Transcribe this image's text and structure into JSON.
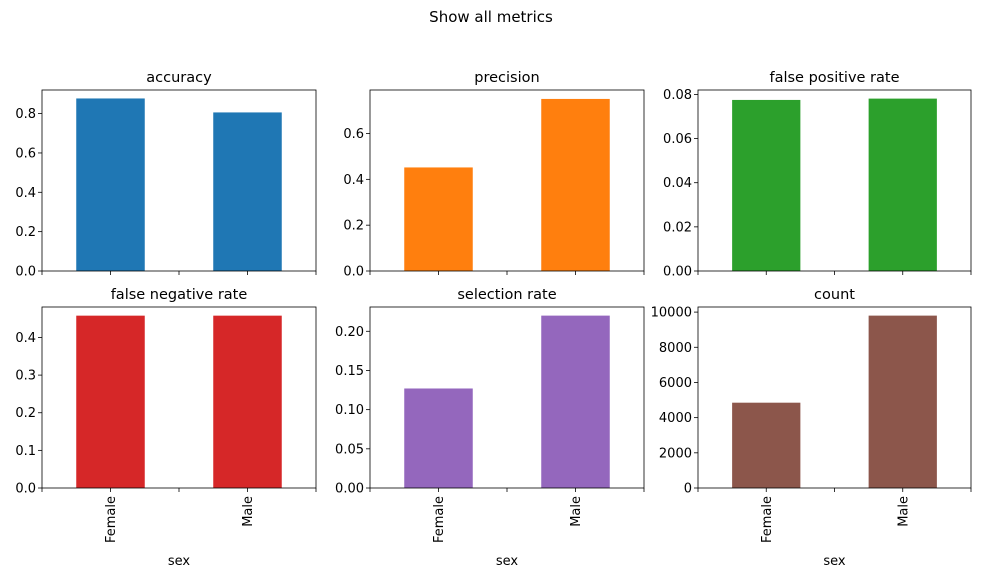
{
  "figure": {
    "suptitle": "Show all metrics"
  },
  "chart_data": [
    {
      "type": "bar",
      "title": "accuracy",
      "categories": [
        "Female",
        "Male"
      ],
      "values": [
        0.877,
        0.806
      ],
      "ylim": [
        0,
        0.92
      ],
      "yticks": [
        0.0,
        0.2,
        0.4,
        0.6,
        0.8
      ],
      "tick_decimals": 1,
      "color": "#1f77b4",
      "xlabel": "",
      "show_xticklabels": false,
      "grid": false
    },
    {
      "type": "bar",
      "title": "precision",
      "categories": [
        "Female",
        "Male"
      ],
      "values": [
        0.452,
        0.751
      ],
      "ylim": [
        0,
        0.79
      ],
      "yticks": [
        0.0,
        0.2,
        0.4,
        0.6
      ],
      "tick_decimals": 1,
      "color": "#ff7f0e",
      "xlabel": "",
      "show_xticklabels": false,
      "grid": false
    },
    {
      "type": "bar",
      "title": "false positive rate",
      "categories": [
        "Female",
        "Male"
      ],
      "values": [
        0.0775,
        0.0781
      ],
      "ylim": [
        0,
        0.082
      ],
      "yticks": [
        0.0,
        0.02,
        0.04,
        0.06,
        0.08
      ],
      "tick_decimals": 2,
      "color": "#2ca02c",
      "xlabel": "",
      "show_xticklabels": false,
      "grid": false
    },
    {
      "type": "bar",
      "title": "false negative rate",
      "categories": [
        "Female",
        "Male"
      ],
      "values": [
        0.458,
        0.458
      ],
      "ylim": [
        0,
        0.481
      ],
      "yticks": [
        0.0,
        0.1,
        0.2,
        0.3,
        0.4
      ],
      "tick_decimals": 1,
      "color": "#d62728",
      "xlabel": "sex",
      "show_xticklabels": true,
      "grid": false
    },
    {
      "type": "bar",
      "title": "selection rate",
      "categories": [
        "Female",
        "Male"
      ],
      "values": [
        0.127,
        0.22
      ],
      "ylim": [
        0,
        0.231
      ],
      "yticks": [
        0.0,
        0.05,
        0.1,
        0.15,
        0.2
      ],
      "tick_decimals": 2,
      "color": "#9467bd",
      "xlabel": "sex",
      "show_xticklabels": true,
      "grid": false
    },
    {
      "type": "bar",
      "title": "count",
      "categories": [
        "Female",
        "Male"
      ],
      "values": [
        4850,
        9800
      ],
      "ylim": [
        0,
        10290
      ],
      "yticks": [
        0,
        2000,
        4000,
        6000,
        8000,
        10000
      ],
      "tick_decimals": 0,
      "color": "#8c564b",
      "xlabel": "sex",
      "show_xticklabels": true,
      "grid": false
    }
  ]
}
